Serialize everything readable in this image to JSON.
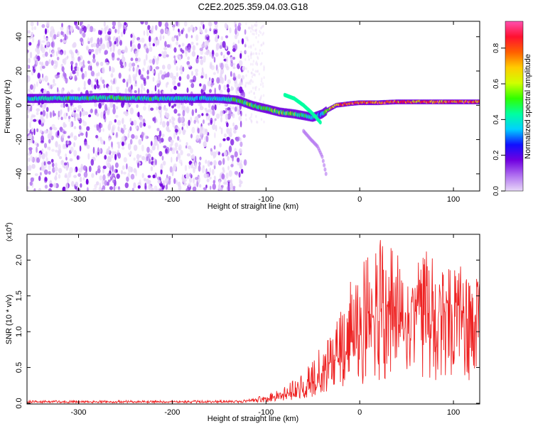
{
  "figure_title": "C2E2.2025.359.04.03.G18",
  "chart_data": [
    {
      "type": "heatmap",
      "title": "C2E2.2025.359.04.03.G18",
      "xlabel": "Height of straight line (km)",
      "ylabel": "Frequency (Hz)",
      "xlim": [
        -355,
        128
      ],
      "ylim": [
        -50,
        49
      ],
      "x_ticks": [
        -300,
        -200,
        -100,
        0,
        100
      ],
      "x_tick_labels": [
        "-300",
        "-200",
        "-100",
        "0",
        "100"
      ],
      "y_ticks": [
        -40,
        -20,
        0,
        20,
        40
      ],
      "y_tick_labels": [
        "-40",
        "-20",
        "0",
        "20",
        "40"
      ],
      "colorbar": {
        "label": "Normalized spectral amplitude",
        "range": [
          0,
          0.95
        ],
        "ticks": [
          0.0,
          0.2,
          0.4,
          0.6,
          0.8
        ],
        "tick_labels": [
          "0.0",
          "0.2",
          "0.4",
          "0.6",
          "0.8"
        ],
        "colors": [
          "#e8d8f8",
          "#b070f0",
          "#7000e0",
          "#1010ff",
          "#00d0ff",
          "#00ffa0",
          "#30ff00",
          "#d0ff00",
          "#ffcc00",
          "#ff6000",
          "#ff1030",
          "#ff50b0"
        ]
      },
      "noise_region_x": [
        -355,
        -122
      ],
      "signal_track": {
        "x": [
          -355,
          -330,
          -300,
          -270,
          -240,
          -210,
          -180,
          -150,
          -130,
          -115,
          -100,
          -85,
          -70,
          -60,
          -50,
          -40,
          -35,
          -25,
          -10,
          0,
          20,
          40,
          60,
          80,
          100,
          128
        ],
        "frequency": [
          4,
          4,
          4,
          4.5,
          4,
          4,
          4,
          4,
          3,
          0,
          -2,
          -4,
          -5,
          -6,
          -7,
          -5,
          -3,
          0,
          1,
          1.5,
          1.5,
          2,
          2,
          2,
          2,
          2
        ],
        "amplitude": [
          0.4,
          0.45,
          0.45,
          0.5,
          0.45,
          0.45,
          0.4,
          0.4,
          0.5,
          0.55,
          0.5,
          0.55,
          0.55,
          0.5,
          0.45,
          0.35,
          0.6,
          0.8,
          0.85,
          0.85,
          0.85,
          0.85,
          0.8,
          0.85,
          0.85,
          0.85
        ]
      },
      "branches": [
        {
          "x": [
            -80,
            -70,
            -60,
            -50,
            -42
          ],
          "frequency": [
            6,
            4,
            0,
            -5,
            -10
          ]
        },
        {
          "x": [
            -60,
            -52,
            -45,
            -40,
            -36
          ],
          "frequency": [
            -15,
            -20,
            -24,
            -30,
            -40
          ]
        }
      ]
    },
    {
      "type": "line",
      "xlabel": "Height of straight line (km)",
      "ylabel": "SNR (10 * v/v)",
      "y_scale_label_prefix": "(x10",
      "y_scale_label_exponent": "4",
      "y_scale_label_suffix": ")",
      "xlim": [
        -355,
        128
      ],
      "ylim": [
        -0.01,
        2.36
      ],
      "x_ticks": [
        -300,
        -200,
        -100,
        0,
        100
      ],
      "x_tick_labels": [
        "-300",
        "-200",
        "-100",
        "0",
        "100"
      ],
      "y_ticks": [
        0.0,
        0.5,
        1.0,
        1.5,
        2.0
      ],
      "y_tick_labels": [
        "0.0",
        "0.5",
        "1.0",
        "1.5",
        "2.0"
      ],
      "series": [
        {
          "name": "SNR",
          "color": "#ee2222",
          "x_envelope": [
            -355,
            -300,
            -250,
            -200,
            -150,
            -120,
            -100,
            -90,
            -80,
            -70,
            -60,
            -50,
            -40,
            -30,
            -20,
            -10,
            0,
            10,
            20,
            30,
            40,
            50,
            60,
            70,
            80,
            90,
            100,
            110,
            120,
            128
          ],
          "mean": [
            0.02,
            0.02,
            0.02,
            0.02,
            0.02,
            0.03,
            0.06,
            0.1,
            0.13,
            0.17,
            0.22,
            0.3,
            0.42,
            0.55,
            0.7,
            0.85,
            1.0,
            1.15,
            1.3,
            1.35,
            1.3,
            1.25,
            1.3,
            1.3,
            1.25,
            1.3,
            1.3,
            1.25,
            1.3,
            1.3
          ],
          "peak": [
            0.04,
            0.04,
            0.04,
            0.04,
            0.04,
            0.05,
            0.12,
            0.18,
            0.25,
            0.35,
            0.45,
            0.6,
            0.85,
            1.05,
            1.3,
            1.7,
            2.0,
            2.15,
            2.35,
            2.25,
            2.2,
            2.15,
            2.0,
            2.15,
            2.0,
            2.0,
            2.0,
            1.9,
            1.8,
            1.7
          ]
        }
      ]
    }
  ]
}
